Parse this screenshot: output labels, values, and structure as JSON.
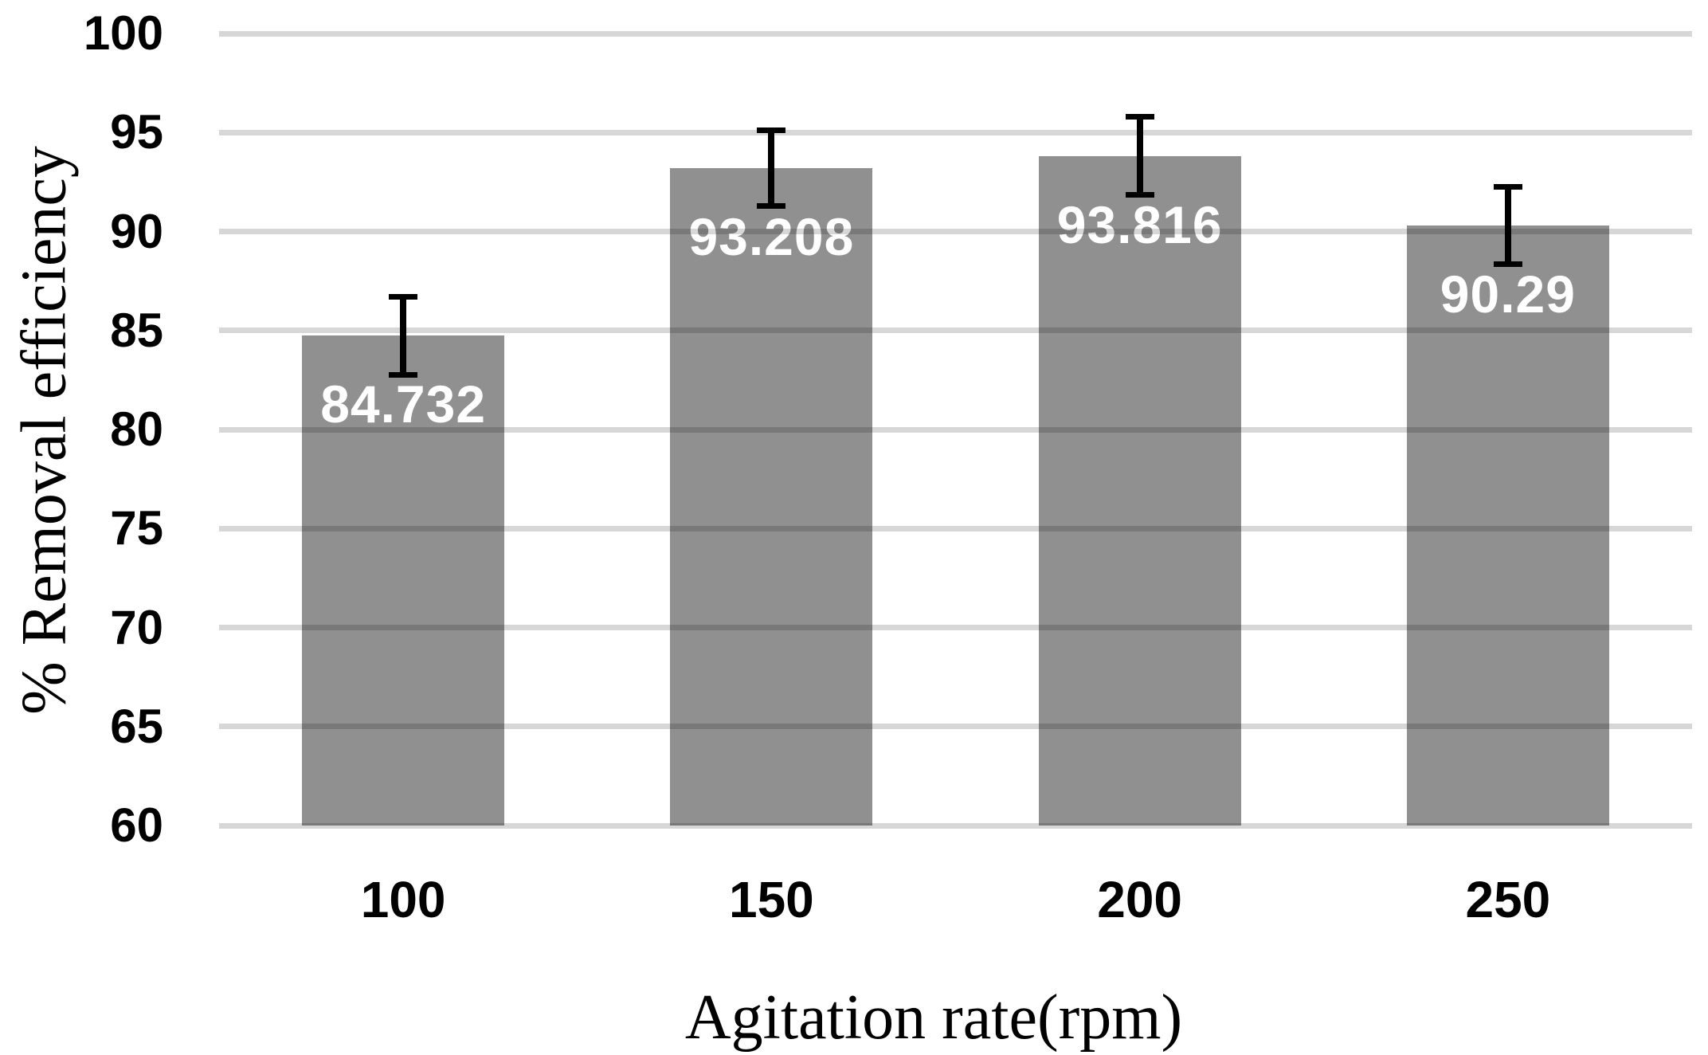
{
  "chart_data": {
    "type": "bar",
    "title": "",
    "xlabel": "Agitation rate(rpm)",
    "ylabel": "% Removal efficiency",
    "categories": [
      "100",
      "150",
      "200",
      "250"
    ],
    "values": [
      84.732,
      93.208,
      93.816,
      90.29
    ],
    "value_labels": [
      "84.732",
      "93.208",
      "93.816",
      "90.29"
    ],
    "errors": [
      2.1,
      2.05,
      2.1,
      2.1
    ],
    "ylim": [
      60,
      100
    ],
    "ytick_step": 5,
    "yticks": [
      "100",
      "95",
      "90",
      "85",
      "80",
      "75",
      "70",
      "65",
      "60"
    ],
    "grid": true,
    "legend": "none",
    "colors": {
      "bar": "#909090",
      "gridline": "#d9d9d9",
      "data_label": "#ffffff",
      "error_bar": "#000000",
      "text": "#000000"
    }
  }
}
